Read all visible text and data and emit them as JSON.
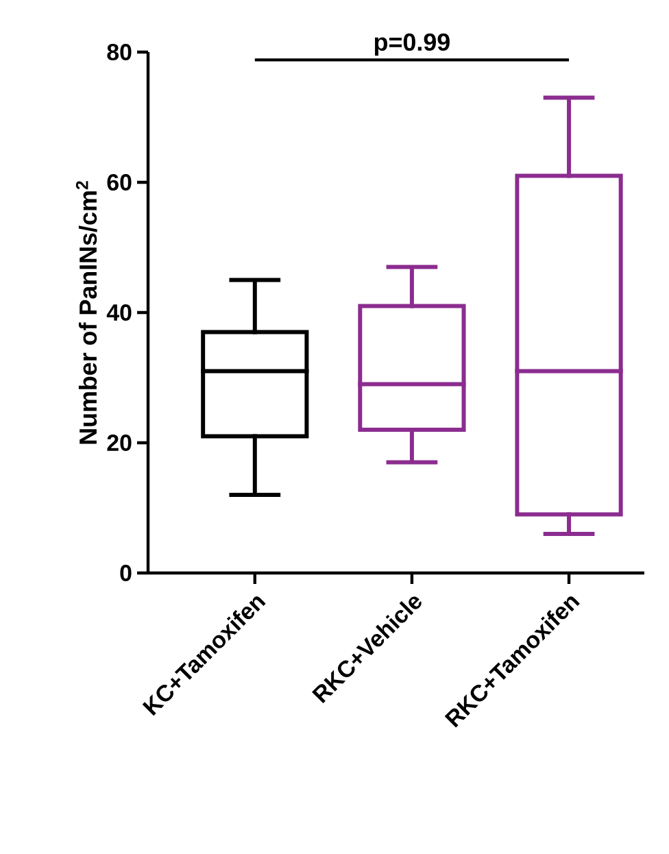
{
  "chart_data": {
    "type": "box",
    "ylabel": "Number of PanINs/cm$^{2}$",
    "categories": [
      "KC+Tamoxifen",
      "RKC+Vehicle",
      "RKC+Tamoxifen"
    ],
    "boxes": [
      {
        "low": 12,
        "q1": 21,
        "median": 31,
        "q3": 37,
        "high": 45
      },
      {
        "low": 17,
        "q1": 22,
        "median": 29,
        "q3": 41,
        "high": 47
      },
      {
        "low": 6,
        "q1": 9,
        "median": 31,
        "q3": 61,
        "high": 73
      }
    ],
    "colors": [
      "#000000",
      "#8b2c8f",
      "#8b2c8f"
    ],
    "ylim": [
      0,
      80
    ],
    "yticks": [
      0,
      20,
      40,
      60,
      80
    ],
    "grid": false,
    "annotations": [
      "p=0.99"
    ]
  }
}
